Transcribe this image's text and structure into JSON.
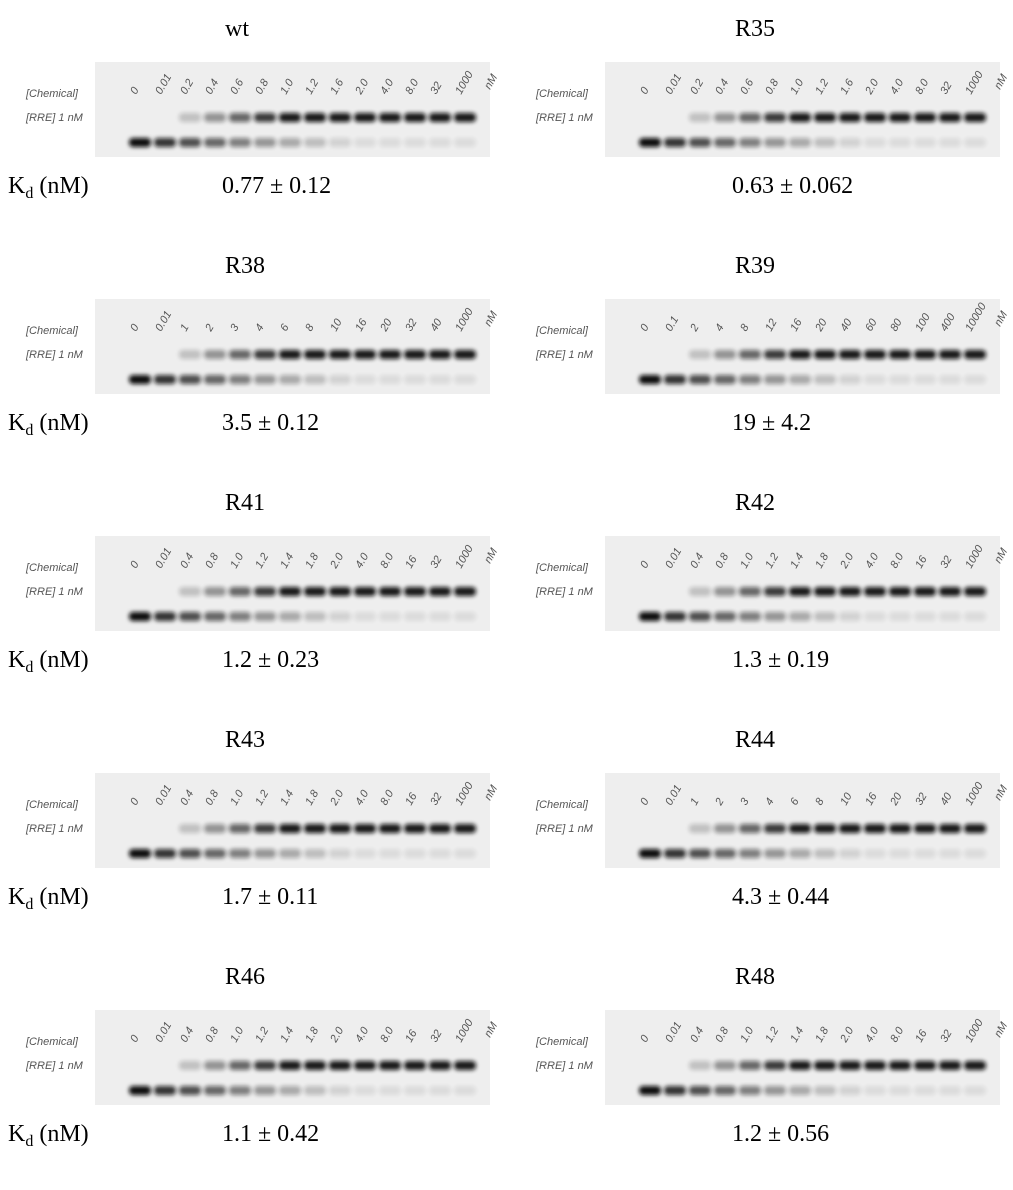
{
  "labels": {
    "chemical": "[Chemical]",
    "rre": "[RRE] 1 nM",
    "unit": "nM",
    "kd_k": "K",
    "kd_sub": "d",
    "kd_unit": "(nM)"
  },
  "panels": [
    {
      "name": "wt",
      "lanes": [
        "0",
        "0.01",
        "0.2",
        "0.4",
        "0.6",
        "0.8",
        "1.0",
        "1.2",
        "1.6",
        "2.0",
        "4.0",
        "8.0",
        "32",
        "1000"
      ],
      "kd": "0.77 ± 0.12"
    },
    {
      "name": "R35",
      "lanes": [
        "0",
        "0.01",
        "0.2",
        "0.4",
        "0.6",
        "0.8",
        "1.0",
        "1.2",
        "1.6",
        "2.0",
        "4.0",
        "8.0",
        "32",
        "1000"
      ],
      "kd": "0.63 ± 0.062"
    },
    {
      "name": "R38",
      "lanes": [
        "0",
        "0.01",
        "1",
        "2",
        "3",
        "4",
        "6",
        "8",
        "10",
        "16",
        "20",
        "32",
        "40",
        "1000"
      ],
      "kd": "3.5 ± 0.12"
    },
    {
      "name": "R39",
      "lanes": [
        "0",
        "0.1",
        "2",
        "4",
        "8",
        "12",
        "16",
        "20",
        "40",
        "60",
        "80",
        "100",
        "400",
        "10000"
      ],
      "kd": "19 ± 4.2"
    },
    {
      "name": "R41",
      "lanes": [
        "0",
        "0.01",
        "0.4",
        "0.8",
        "1.0",
        "1.2",
        "1.4",
        "1.8",
        "2.0",
        "4.0",
        "8.0",
        "16",
        "32",
        "1000"
      ],
      "kd": "1.2 ± 0.23"
    },
    {
      "name": "R42",
      "lanes": [
        "0",
        "0.01",
        "0.4",
        "0.8",
        "1.0",
        "1.2",
        "1.4",
        "1.8",
        "2.0",
        "4.0",
        "8.0",
        "16",
        "32",
        "1000"
      ],
      "kd": "1.3 ± 0.19"
    },
    {
      "name": "R43",
      "lanes": [
        "0",
        "0.01",
        "0.4",
        "0.8",
        "1.0",
        "1.2",
        "1.4",
        "1.8",
        "2.0",
        "4.0",
        "8.0",
        "16",
        "32",
        "1000"
      ],
      "kd": "1.7 ± 0.11"
    },
    {
      "name": "R44",
      "lanes": [
        "0",
        "0.01",
        "1",
        "2",
        "3",
        "4",
        "6",
        "8",
        "10",
        "16",
        "20",
        "32",
        "40",
        "1000"
      ],
      "kd": "4.3 ± 0.44"
    },
    {
      "name": "R46",
      "lanes": [
        "0",
        "0.01",
        "0.4",
        "0.8",
        "1.0",
        "1.2",
        "1.4",
        "1.8",
        "2.0",
        "4.0",
        "8.0",
        "16",
        "32",
        "1000"
      ],
      "kd": "1.1 ± 0.42"
    },
    {
      "name": "R48",
      "lanes": [
        "0",
        "0.01",
        "0.4",
        "0.8",
        "1.0",
        "1.2",
        "1.4",
        "1.8",
        "2.0",
        "4.0",
        "8.0",
        "16",
        "32",
        "1000"
      ],
      "kd": "1.2 ± 0.56"
    }
  ]
}
